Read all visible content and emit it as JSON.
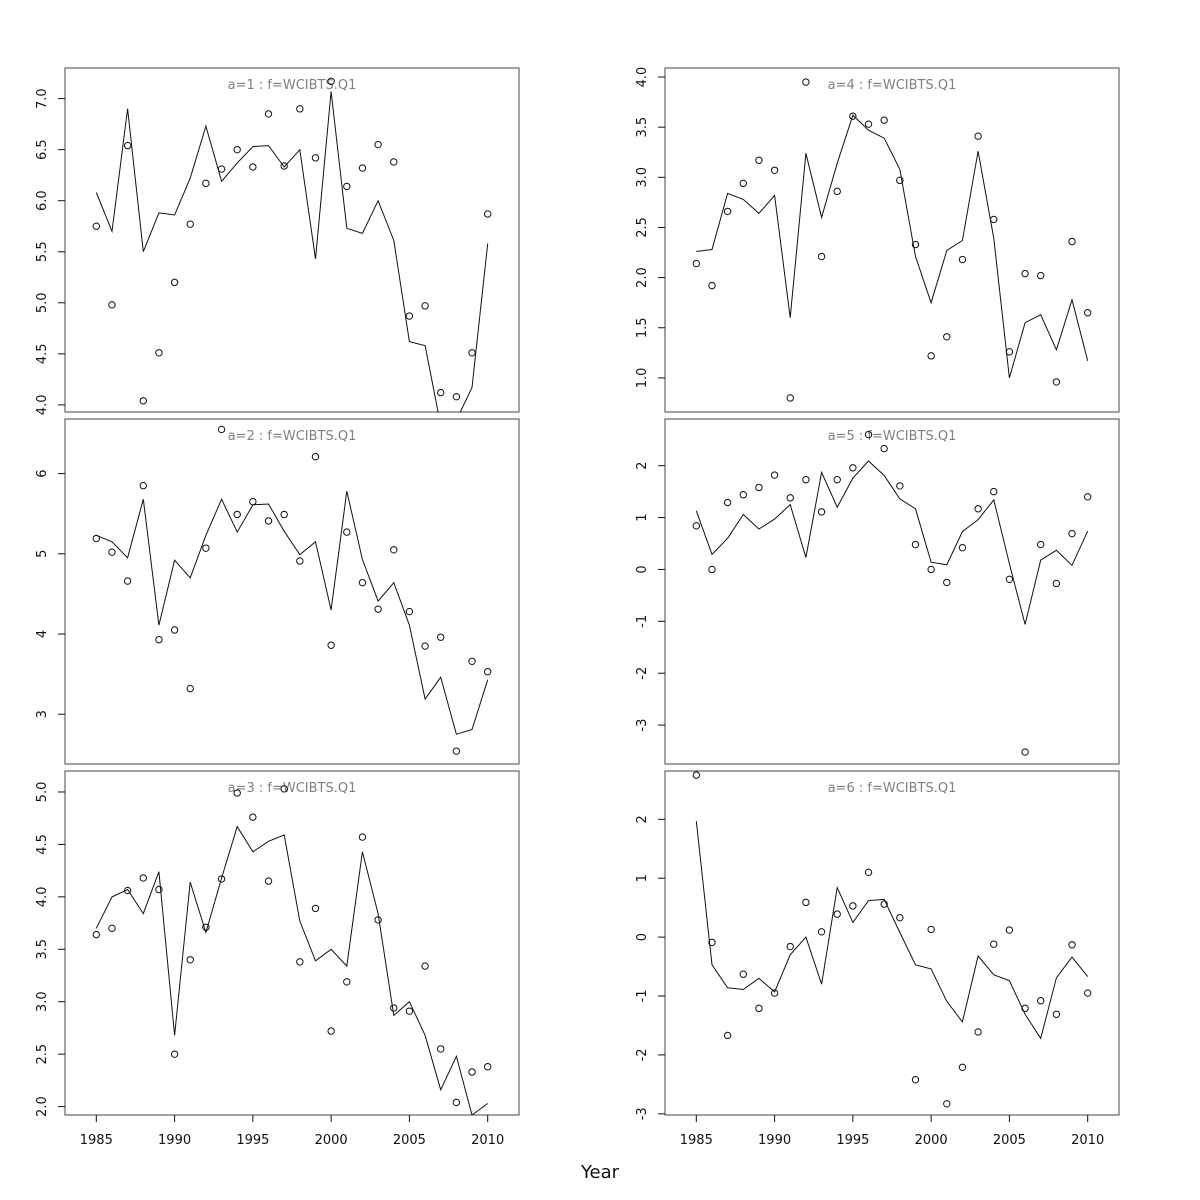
{
  "chart_data": {
    "xlabel": "Year",
    "panels": [
      {
        "title": "a=1  :  f=WCIBTS.Q1",
        "type": "scatter+line",
        "xlim": [
          1983,
          2012
        ],
        "ylim": [
          3.93,
          7.3
        ],
        "yticks": [
          4.0,
          4.5,
          5.0,
          5.5,
          6.0,
          6.5,
          7.0
        ],
        "xticks": [],
        "x": [
          1985,
          1986,
          1987,
          1988,
          1989,
          1990,
          1991,
          1992,
          1993,
          1994,
          1995,
          1996,
          1997,
          1998,
          1999,
          2000,
          2001,
          2002,
          2003,
          2004,
          2005,
          2006,
          2007,
          2008,
          2009,
          2010
        ],
        "points": [
          5.75,
          4.98,
          6.54,
          4.04,
          4.51,
          5.2,
          5.77,
          6.17,
          6.31,
          6.5,
          6.33,
          6.85,
          6.34,
          6.9,
          6.42,
          7.17,
          6.14,
          6.32,
          6.55,
          6.38,
          4.87,
          4.97,
          4.12,
          4.08,
          4.51,
          5.87
        ],
        "line": [
          6.08,
          5.7,
          6.9,
          5.5,
          5.88,
          5.86,
          6.22,
          6.73,
          6.19,
          6.37,
          6.53,
          6.54,
          6.33,
          6.5,
          5.43,
          7.07,
          5.73,
          5.68,
          6.0,
          5.61,
          4.62,
          4.58,
          3.8,
          3.85,
          4.17,
          5.58
        ]
      },
      {
        "title": "a=4  :  f=WCIBTS.Q1",
        "type": "scatter+line",
        "xlim": [
          1983,
          2012
        ],
        "ylim": [
          0.66,
          4.09
        ],
        "yticks": [
          1.0,
          1.5,
          2.0,
          2.5,
          3.0,
          3.5,
          4.0
        ],
        "xticks": [],
        "x": [
          1985,
          1986,
          1987,
          1988,
          1989,
          1990,
          1991,
          1992,
          1993,
          1994,
          1995,
          1996,
          1997,
          1998,
          1999,
          2000,
          2001,
          2002,
          2003,
          2004,
          2005,
          2006,
          2007,
          2008,
          2009,
          2010
        ],
        "points": [
          2.14,
          1.92,
          2.66,
          2.94,
          3.17,
          3.07,
          0.8,
          3.95,
          2.21,
          2.86,
          3.61,
          3.53,
          3.57,
          2.97,
          2.33,
          1.22,
          1.41,
          2.18,
          3.41,
          2.58,
          1.26,
          2.04,
          2.02,
          0.96,
          2.36,
          1.65
        ],
        "line": [
          2.26,
          2.28,
          2.84,
          2.78,
          2.64,
          2.82,
          1.6,
          3.24,
          2.6,
          3.14,
          3.62,
          3.47,
          3.39,
          3.08,
          2.21,
          1.75,
          2.27,
          2.37,
          3.26,
          2.39,
          1.0,
          1.55,
          1.63,
          1.28,
          1.78,
          1.17
        ]
      },
      {
        "title": "a=2  :  f=WCIBTS.Q1",
        "type": "scatter+line",
        "xlim": [
          1983,
          2012
        ],
        "ylim": [
          2.38,
          6.68
        ],
        "yticks": [
          3,
          4,
          5,
          6
        ],
        "xticks": [],
        "x": [
          1985,
          1986,
          1987,
          1988,
          1989,
          1990,
          1991,
          1992,
          1993,
          1994,
          1995,
          1996,
          1997,
          1998,
          1999,
          2000,
          2001,
          2002,
          2003,
          2004,
          2005,
          2006,
          2007,
          2008,
          2009,
          2010
        ],
        "points": [
          5.19,
          5.02,
          4.66,
          5.85,
          3.93,
          4.05,
          3.32,
          5.07,
          6.55,
          5.49,
          5.65,
          5.41,
          5.49,
          4.91,
          6.21,
          3.86,
          5.27,
          4.64,
          4.31,
          5.05,
          4.28,
          3.85,
          3.96,
          2.54,
          3.66,
          3.53
        ],
        "line": [
          5.23,
          5.15,
          4.95,
          5.68,
          4.11,
          4.92,
          4.7,
          5.23,
          5.68,
          5.27,
          5.61,
          5.62,
          5.28,
          4.99,
          5.15,
          4.3,
          5.78,
          4.93,
          4.41,
          4.64,
          4.11,
          3.19,
          3.46,
          2.75,
          2.81,
          3.43
        ]
      },
      {
        "title": "a=5  :  f=WCIBTS.Q1",
        "type": "scatter+line",
        "xlim": [
          1983,
          2012
        ],
        "ylim": [
          -3.75,
          2.9
        ],
        "yticks": [
          -3,
          -2,
          -1,
          0,
          1,
          2
        ],
        "xticks": [],
        "x": [
          1985,
          1986,
          1987,
          1988,
          1989,
          1990,
          1991,
          1992,
          1993,
          1994,
          1995,
          1996,
          1997,
          1998,
          1999,
          2000,
          2001,
          2002,
          2003,
          2004,
          2005,
          2006,
          2007,
          2008,
          2009,
          2010
        ],
        "points": [
          0.84,
          0.0,
          1.29,
          1.44,
          1.58,
          1.82,
          1.38,
          1.73,
          1.11,
          1.73,
          1.96,
          2.6,
          2.33,
          1.61,
          0.48,
          0.0,
          -0.25,
          0.42,
          1.17,
          1.5,
          -0.19,
          -3.52,
          0.48,
          -0.27,
          0.69,
          1.4
        ],
        "line": [
          1.13,
          0.29,
          0.6,
          1.06,
          0.78,
          0.97,
          1.25,
          0.23,
          1.87,
          1.2,
          1.76,
          2.09,
          1.81,
          1.36,
          1.17,
          0.14,
          0.09,
          0.73,
          0.96,
          1.34,
          0.11,
          -1.06,
          0.18,
          0.37,
          0.08,
          0.74
        ]
      },
      {
        "title": "a=3  :  f=WCIBTS.Q1",
        "type": "scatter+line",
        "xlim": [
          1983,
          2012
        ],
        "ylim": [
          1.92,
          5.2
        ],
        "yticks": [
          2.0,
          2.5,
          3.0,
          3.5,
          4.0,
          4.5,
          5.0
        ],
        "xticks": [
          1985,
          1990,
          1995,
          2000,
          2005,
          2010
        ],
        "x": [
          1985,
          1986,
          1987,
          1988,
          1989,
          1990,
          1991,
          1992,
          1993,
          1994,
          1995,
          1996,
          1997,
          1998,
          1999,
          2000,
          2001,
          2002,
          2003,
          2004,
          2005,
          2006,
          2007,
          2008,
          2009,
          2010
        ],
        "points": [
          3.64,
          3.7,
          4.06,
          4.18,
          4.07,
          2.5,
          3.4,
          3.71,
          4.17,
          4.99,
          4.76,
          4.15,
          5.03,
          3.38,
          3.89,
          2.72,
          3.19,
          4.57,
          3.78,
          2.94,
          2.91,
          3.34,
          2.55,
          2.04,
          2.33,
          2.38
        ],
        "line": [
          3.7,
          4.0,
          4.07,
          3.84,
          4.24,
          2.68,
          4.14,
          3.66,
          4.18,
          4.67,
          4.43,
          4.53,
          4.59,
          3.77,
          3.39,
          3.5,
          3.34,
          4.43,
          3.84,
          2.87,
          3.0,
          2.68,
          2.16,
          2.48,
          1.92,
          2.03
        ]
      },
      {
        "title": "a=6  :  f=WCIBTS.Q1",
        "type": "scatter+line",
        "xlim": [
          1983,
          2012
        ],
        "ylim": [
          -3.02,
          2.82
        ],
        "yticks": [
          -3,
          -2,
          -1,
          0,
          1,
          2
        ],
        "xticks": [
          1985,
          1990,
          1995,
          2000,
          2005,
          2010
        ],
        "x": [
          1985,
          1986,
          1987,
          1988,
          1989,
          1990,
          1991,
          1992,
          1993,
          1994,
          1995,
          1996,
          1997,
          1998,
          1999,
          2000,
          2001,
          2002,
          2003,
          2004,
          2005,
          2006,
          2007,
          2008,
          2009,
          2010
        ],
        "points": [
          2.75,
          -0.09,
          -1.67,
          -0.63,
          -1.21,
          -0.95,
          -0.16,
          0.59,
          0.09,
          0.39,
          0.53,
          1.1,
          0.56,
          0.33,
          -2.42,
          0.13,
          -2.83,
          -2.21,
          -1.61,
          -0.12,
          0.12,
          -1.21,
          -1.08,
          -1.31,
          -0.13,
          -0.95
        ],
        "line": [
          1.97,
          -0.47,
          -0.86,
          -0.89,
          -0.7,
          -0.93,
          -0.3,
          0.0,
          -0.8,
          0.84,
          0.25,
          0.62,
          0.64,
          0.08,
          -0.47,
          -0.54,
          -1.09,
          -1.44,
          -0.32,
          -0.64,
          -0.74,
          -1.31,
          -1.72,
          -0.69,
          -0.34,
          -0.67
        ]
      }
    ]
  }
}
